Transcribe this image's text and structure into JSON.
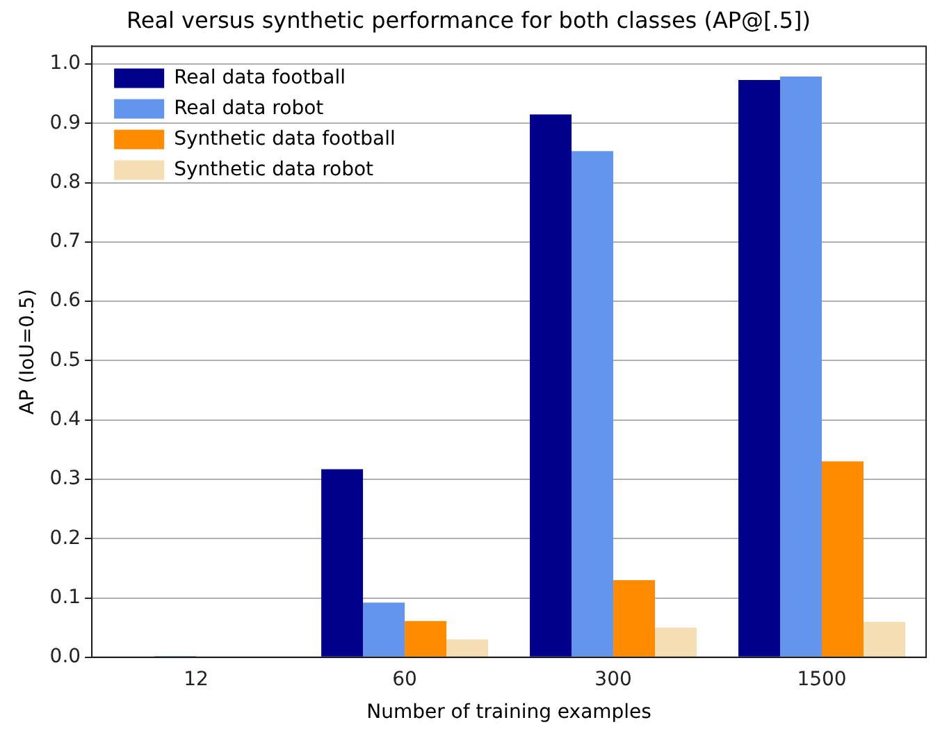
{
  "chart_data": {
    "type": "bar",
    "title": "Real versus synthetic performance for both classes (AP@[.5])",
    "xlabel": "Number of training examples",
    "ylabel": "AP (IoU=0.5)",
    "categories": [
      "12",
      "60",
      "300",
      "1500"
    ],
    "series": [
      {
        "name": "Real data football",
        "color": "#00008b",
        "values": [
          0,
          0.317,
          0.915,
          0.973
        ]
      },
      {
        "name": "Real data robot",
        "color": "#6495ed",
        "values": [
          0.002,
          0.092,
          0.853,
          0.979
        ]
      },
      {
        "name": "Synthetic data football",
        "color": "#ff8c00",
        "values": [
          0,
          0.061,
          0.13,
          0.33
        ]
      },
      {
        "name": "Synthetic data robot",
        "color": "#f5deb3",
        "values": [
          0,
          0.03,
          0.05,
          0.06
        ]
      }
    ],
    "ylim": [
      0,
      1.03
    ],
    "yticks": [
      {
        "value": 0,
        "label": "0.0"
      },
      0.1,
      0.2,
      0.3,
      0.4,
      0.5,
      0.6,
      0.7,
      0.8,
      0.9,
      {
        "value": 1,
        "label": "1.0"
      }
    ],
    "grid": "y",
    "legend": "top left"
  }
}
